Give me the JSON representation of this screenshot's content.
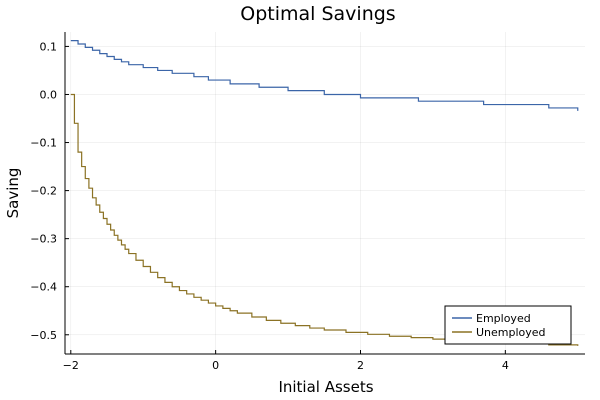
{
  "chart_data": {
    "type": "line",
    "title": "Optimal Savings",
    "xlabel": "Initial Assets",
    "ylabel": "Saving",
    "xlim": [
      -2.08,
      5.1
    ],
    "ylim": [
      -0.54,
      0.13
    ],
    "xticks": [
      -2,
      0,
      2,
      4
    ],
    "xtick_labels": [
      "−2",
      "0",
      "2",
      "4"
    ],
    "yticks": [
      0.1,
      0.0,
      -0.1,
      -0.2,
      -0.3,
      -0.4,
      -0.5
    ],
    "ytick_labels": [
      "0.1",
      "0.0",
      "−0.1",
      "−0.2",
      "−0.3",
      "−0.4",
      "−0.5"
    ],
    "grid": true,
    "legend_position": "bottom-right",
    "series": [
      {
        "name": "Employed",
        "color": "#3b65a8",
        "step": true,
        "x": [
          -2.0,
          -1.9,
          -1.8,
          -1.7,
          -1.6,
          -1.5,
          -1.4,
          -1.3,
          -1.2,
          -1.0,
          -0.8,
          -0.6,
          -0.3,
          -0.1,
          0.2,
          0.6,
          1.0,
          1.5,
          2.0,
          2.8,
          3.7,
          4.6,
          5.0
        ],
        "y": [
          0.112,
          0.105,
          0.098,
          0.092,
          0.085,
          0.079,
          0.073,
          0.068,
          0.062,
          0.056,
          0.05,
          0.044,
          0.037,
          0.03,
          0.022,
          0.015,
          0.008,
          0.0,
          -0.007,
          -0.014,
          -0.021,
          -0.028,
          -0.034
        ]
      },
      {
        "name": "Unemployed",
        "color": "#8b7224",
        "step": true,
        "x": [
          -2.0,
          -1.95,
          -1.9,
          -1.85,
          -1.8,
          -1.75,
          -1.7,
          -1.65,
          -1.6,
          -1.55,
          -1.5,
          -1.45,
          -1.4,
          -1.35,
          -1.3,
          -1.25,
          -1.2,
          -1.1,
          -1.0,
          -0.9,
          -0.8,
          -0.7,
          -0.6,
          -0.5,
          -0.4,
          -0.3,
          -0.2,
          -0.1,
          0.0,
          0.1,
          0.2,
          0.3,
          0.5,
          0.7,
          0.9,
          1.1,
          1.3,
          1.5,
          1.8,
          2.1,
          2.4,
          2.7,
          3.0,
          3.4,
          3.8,
          4.2,
          4.6,
          5.0
        ],
        "y": [
          0.0,
          -0.06,
          -0.12,
          -0.15,
          -0.175,
          -0.195,
          -0.215,
          -0.23,
          -0.245,
          -0.258,
          -0.27,
          -0.282,
          -0.293,
          -0.303,
          -0.313,
          -0.322,
          -0.331,
          -0.345,
          -0.358,
          -0.37,
          -0.381,
          -0.391,
          -0.4,
          -0.408,
          -0.415,
          -0.422,
          -0.428,
          -0.434,
          -0.44,
          -0.445,
          -0.45,
          -0.455,
          -0.463,
          -0.47,
          -0.476,
          -0.481,
          -0.486,
          -0.49,
          -0.495,
          -0.499,
          -0.503,
          -0.506,
          -0.509,
          -0.512,
          -0.515,
          -0.518,
          -0.521,
          -0.523
        ]
      }
    ]
  }
}
